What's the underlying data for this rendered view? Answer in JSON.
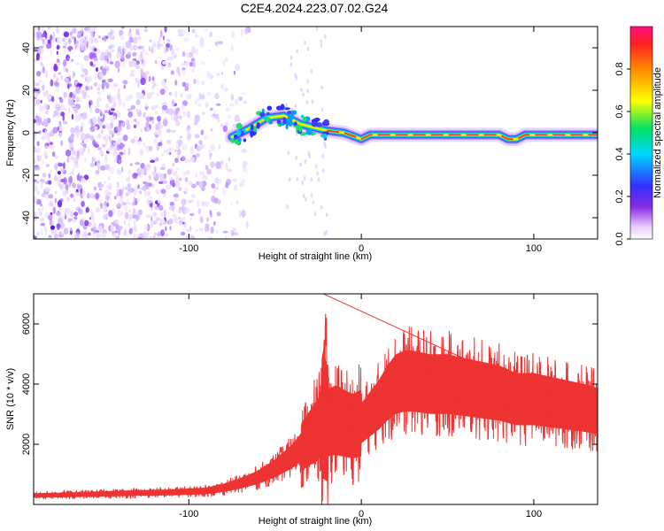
{
  "title": "C2E4.2024.223.07.02.G24",
  "chart_data": [
    {
      "type": "heatmap",
      "xlabel": "Height of straight line (km)",
      "ylabel": "Frequency (Hz)",
      "xlim": [
        -190,
        137
      ],
      "ylim": [
        -50,
        50
      ],
      "xticks": [
        -100,
        0,
        100
      ],
      "yticks": [
        -40,
        -20,
        0,
        20,
        40
      ],
      "noise_region_x": [
        -190,
        -65
      ],
      "signal_track": {
        "x": [
          -75,
          -65,
          -55,
          -45,
          -35,
          -25,
          -20,
          -10,
          0,
          5,
          20,
          40,
          60,
          75,
          80,
          85,
          90,
          95,
          110,
          137
        ],
        "y": [
          -2,
          2,
          7,
          8,
          4,
          2,
          1,
          0,
          -3,
          -1,
          -1,
          -1,
          -1,
          -1,
          -1,
          -3,
          -3,
          -1,
          -1,
          -1
        ]
      },
      "colorbar": {
        "label": "Normalized spectral amplitude",
        "range": [
          0,
          1
        ],
        "ticks": [
          0.0,
          0.2,
          0.4,
          0.6,
          0.8
        ],
        "tick_labels": [
          "0.0",
          "0.2",
          "0.4",
          "0.6",
          "0.8"
        ]
      }
    },
    {
      "type": "line",
      "xlabel": "Height of straight line (km)",
      "ylabel": "SNR (10 * v/v)",
      "xlim": [
        -190,
        137
      ],
      "ylim": [
        0,
        7000
      ],
      "xticks": [
        -100,
        0,
        100
      ],
      "yticks": [
        2000,
        4000,
        6000
      ],
      "series": [
        {
          "color": "#ee3333",
          "x": [
            -190,
            -170,
            -150,
            -130,
            -110,
            -90,
            -80,
            -70,
            -60,
            -50,
            -40,
            -35,
            -30,
            -25,
            -22,
            -20,
            -15,
            -10,
            -5,
            0,
            5,
            10,
            15,
            20,
            25,
            30,
            40,
            50,
            60,
            70,
            80,
            90,
            100,
            110,
            120,
            130,
            137
          ],
          "y": [
            300,
            320,
            350,
            380,
            400,
            450,
            550,
            700,
            900,
            1200,
            1600,
            1900,
            2200,
            2500,
            3000,
            2700,
            2800,
            2700,
            2600,
            2700,
            3000,
            3300,
            3700,
            4000,
            4100,
            4100,
            4000,
            4000,
            3900,
            3800,
            3700,
            3500,
            3500,
            3400,
            3300,
            3200,
            3100
          ]
        }
      ]
    }
  ]
}
